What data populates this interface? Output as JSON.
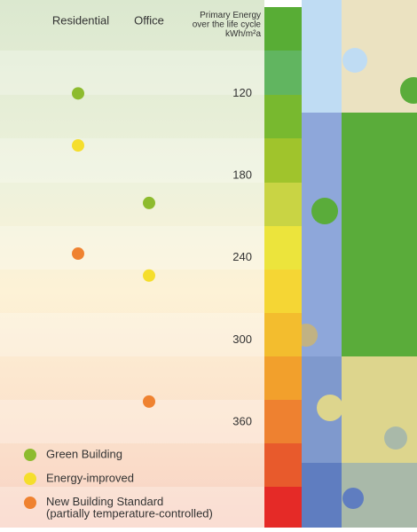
{
  "chart_data": {
    "type": "dot",
    "categories": [
      "Residential",
      "Office"
    ],
    "y_label": "Primary Energy\nover the life cycle\nkWh/m²a",
    "ylim": [
      57,
      437
    ],
    "yticks": [
      120,
      180,
      240,
      300,
      360
    ],
    "y_reversed": true,
    "series": [
      {
        "name": "Green Building",
        "color": "#8dbb2e",
        "values": [
          120,
          200
        ]
      },
      {
        "name": "Energy-improved",
        "color": "#f5de2c",
        "values": [
          158,
          253
        ]
      },
      {
        "name": "New Building Standard\n(partially temperature-controlled)",
        "color": "#ef8230",
        "values": [
          237,
          345
        ]
      }
    ]
  }
}
